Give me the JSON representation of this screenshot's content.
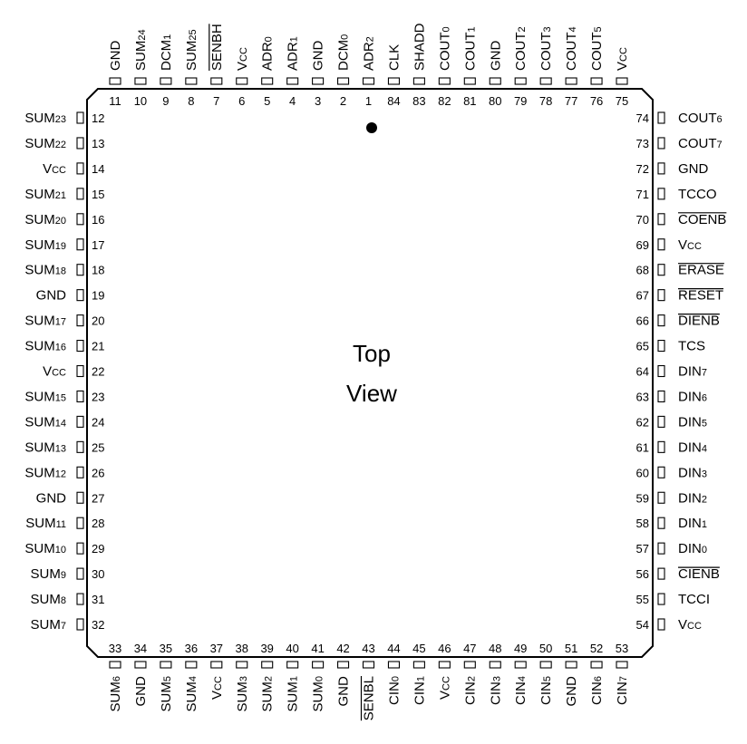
{
  "diagram": {
    "center_text": [
      "Top",
      "View"
    ],
    "sides": {
      "top": [
        {
          "num": "11",
          "label": "GND",
          "sub": ""
        },
        {
          "num": "10",
          "label": "SUM",
          "sub": "24"
        },
        {
          "num": "9",
          "label": "DCM",
          "sub": "1"
        },
        {
          "num": "8",
          "label": "SUM",
          "sub": "25"
        },
        {
          "num": "7",
          "label": "SENBH",
          "sub": "",
          "overline": true
        },
        {
          "num": "6",
          "label": "V",
          "sub": "CC"
        },
        {
          "num": "5",
          "label": "ADR",
          "sub": "0"
        },
        {
          "num": "4",
          "label": "ADR",
          "sub": "1"
        },
        {
          "num": "3",
          "label": "GND",
          "sub": ""
        },
        {
          "num": "2",
          "label": "DCM",
          "sub": "0"
        },
        {
          "num": "1",
          "label": "ADR",
          "sub": "2"
        },
        {
          "num": "84",
          "label": "CLK",
          "sub": ""
        },
        {
          "num": "83",
          "label": "SHADD",
          "sub": ""
        },
        {
          "num": "82",
          "label": "COUT",
          "sub": "0"
        },
        {
          "num": "81",
          "label": "COUT",
          "sub": "1"
        },
        {
          "num": "80",
          "label": "GND",
          "sub": ""
        },
        {
          "num": "79",
          "label": "COUT",
          "sub": "2"
        },
        {
          "num": "78",
          "label": "COUT",
          "sub": "3"
        },
        {
          "num": "77",
          "label": "COUT",
          "sub": "4"
        },
        {
          "num": "76",
          "label": "COUT",
          "sub": "5"
        },
        {
          "num": "75",
          "label": "V",
          "sub": "CC"
        }
      ],
      "left": [
        {
          "num": "12",
          "label": "SUM",
          "sub": "23"
        },
        {
          "num": "13",
          "label": "SUM",
          "sub": "22"
        },
        {
          "num": "14",
          "label": "V",
          "sub": "CC"
        },
        {
          "num": "15",
          "label": "SUM",
          "sub": "21"
        },
        {
          "num": "16",
          "label": "SUM",
          "sub": "20"
        },
        {
          "num": "17",
          "label": "SUM",
          "sub": "19"
        },
        {
          "num": "18",
          "label": "SUM",
          "sub": "18"
        },
        {
          "num": "19",
          "label": "GND",
          "sub": ""
        },
        {
          "num": "20",
          "label": "SUM",
          "sub": "17"
        },
        {
          "num": "21",
          "label": "SUM",
          "sub": "16"
        },
        {
          "num": "22",
          "label": "V",
          "sub": "CC"
        },
        {
          "num": "23",
          "label": "SUM",
          "sub": "15"
        },
        {
          "num": "24",
          "label": "SUM",
          "sub": "14"
        },
        {
          "num": "25",
          "label": "SUM",
          "sub": "13"
        },
        {
          "num": "26",
          "label": "SUM",
          "sub": "12"
        },
        {
          "num": "27",
          "label": "GND",
          "sub": ""
        },
        {
          "num": "28",
          "label": "SUM",
          "sub": "11"
        },
        {
          "num": "29",
          "label": "SUM",
          "sub": "10"
        },
        {
          "num": "30",
          "label": "SUM",
          "sub": "9"
        },
        {
          "num": "31",
          "label": "SUM",
          "sub": "8"
        },
        {
          "num": "32",
          "label": "SUM",
          "sub": "7"
        }
      ],
      "right": [
        {
          "num": "74",
          "label": "COUT",
          "sub": "6"
        },
        {
          "num": "73",
          "label": "COUT",
          "sub": "7"
        },
        {
          "num": "72",
          "label": "GND",
          "sub": ""
        },
        {
          "num": "71",
          "label": "TCCO",
          "sub": ""
        },
        {
          "num": "70",
          "label": "COENB",
          "sub": "",
          "overline": true
        },
        {
          "num": "69",
          "label": "V",
          "sub": "CC"
        },
        {
          "num": "68",
          "label": "ERASE",
          "sub": "",
          "overline": true
        },
        {
          "num": "67",
          "label": "RESET",
          "sub": "",
          "overline": true
        },
        {
          "num": "66",
          "label": "DIENB",
          "sub": "",
          "overline": true
        },
        {
          "num": "65",
          "label": "TCS",
          "sub": ""
        },
        {
          "num": "64",
          "label": "DIN",
          "sub": "7"
        },
        {
          "num": "63",
          "label": "DIN",
          "sub": "6"
        },
        {
          "num": "62",
          "label": "DIN",
          "sub": "5"
        },
        {
          "num": "61",
          "label": "DIN",
          "sub": "4"
        },
        {
          "num": "60",
          "label": "DIN",
          "sub": "3"
        },
        {
          "num": "59",
          "label": "DIN",
          "sub": "2"
        },
        {
          "num": "58",
          "label": "DIN",
          "sub": "1"
        },
        {
          "num": "57",
          "label": "DIN",
          "sub": "0"
        },
        {
          "num": "56",
          "label": "CIENB",
          "sub": "",
          "overline": true
        },
        {
          "num": "55",
          "label": "TCCI",
          "sub": ""
        },
        {
          "num": "54",
          "label": "V",
          "sub": "CC"
        }
      ],
      "bottom": [
        {
          "num": "33",
          "label": "SUM",
          "sub": "6"
        },
        {
          "num": "34",
          "label": "GND",
          "sub": ""
        },
        {
          "num": "35",
          "label": "SUM",
          "sub": "5"
        },
        {
          "num": "36",
          "label": "SUM",
          "sub": "4"
        },
        {
          "num": "37",
          "label": "V",
          "sub": "CC"
        },
        {
          "num": "38",
          "label": "SUM",
          "sub": "3"
        },
        {
          "num": "39",
          "label": "SUM",
          "sub": "2"
        },
        {
          "num": "40",
          "label": "SUM",
          "sub": "1"
        },
        {
          "num": "41",
          "label": "SUM",
          "sub": "0"
        },
        {
          "num": "42",
          "label": "GND",
          "sub": ""
        },
        {
          "num": "43",
          "label": "SENBL",
          "sub": "",
          "overline": true
        },
        {
          "num": "44",
          "label": "CIN",
          "sub": "0"
        },
        {
          "num": "45",
          "label": "CIN",
          "sub": "1"
        },
        {
          "num": "46",
          "label": "V",
          "sub": "CC"
        },
        {
          "num": "47",
          "label": "CIN",
          "sub": "2"
        },
        {
          "num": "48",
          "label": "CIN",
          "sub": "3"
        },
        {
          "num": "49",
          "label": "CIN",
          "sub": "4"
        },
        {
          "num": "50",
          "label": "CIN",
          "sub": "5"
        },
        {
          "num": "51",
          "label": "GND",
          "sub": ""
        },
        {
          "num": "52",
          "label": "CIN",
          "sub": "6"
        },
        {
          "num": "53",
          "label": "CIN",
          "sub": "7"
        }
      ]
    }
  }
}
